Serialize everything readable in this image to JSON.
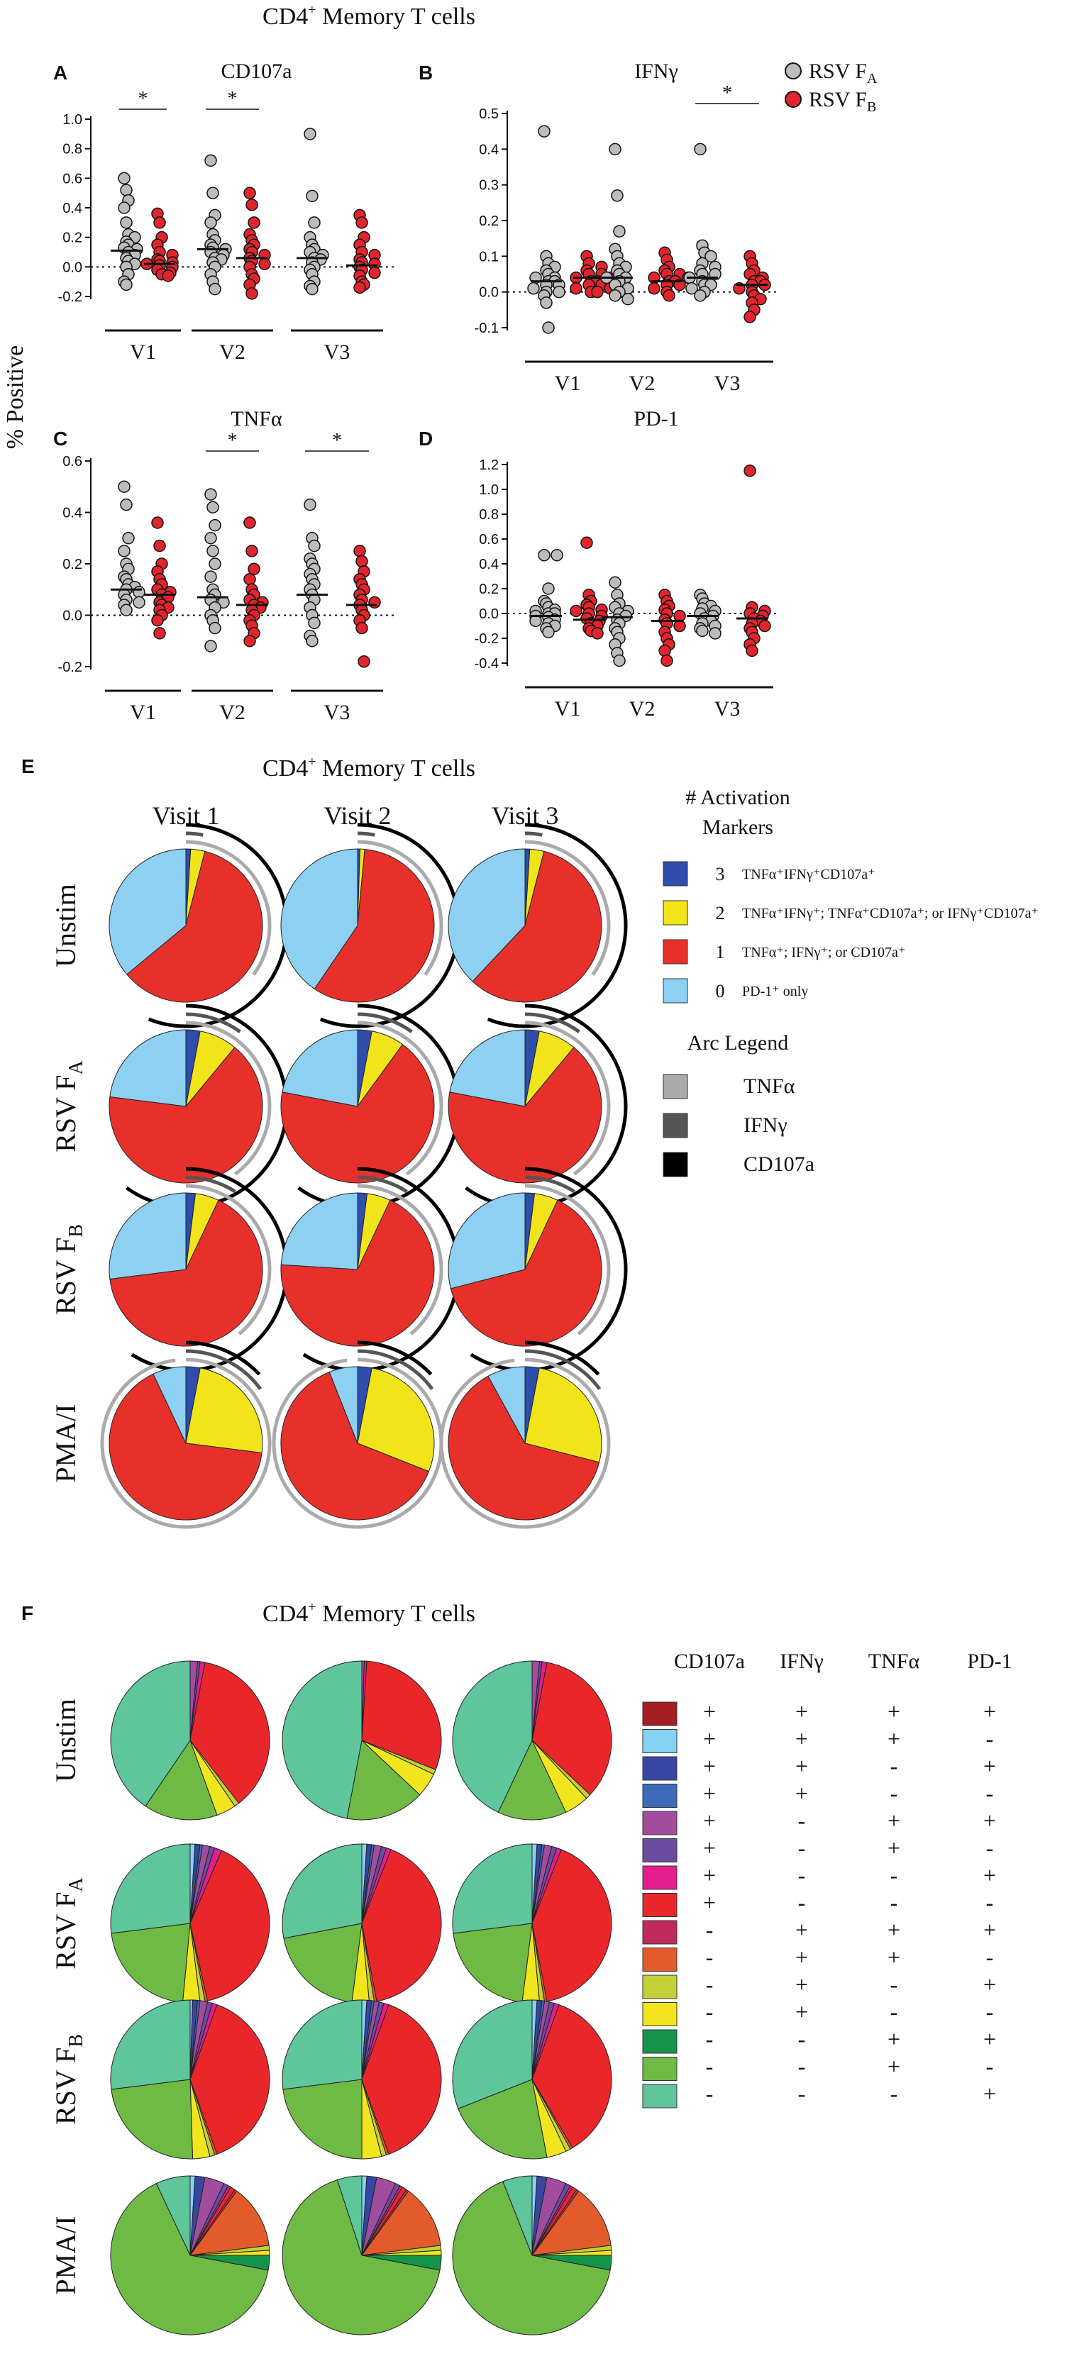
{
  "section_one": {
    "title": "CD4",
    "title_sup": "+",
    "title_rest": " Memory T cells",
    "ylabel": "% Positive",
    "legend": [
      {
        "pre": "RSV F",
        "sub": "A",
        "color": "#bcbcbc"
      },
      {
        "pre": "RSV F",
        "sub": "B",
        "color": "#e2242d"
      }
    ]
  },
  "chart_data": [
    {
      "type": "scatter",
      "panel": "A",
      "title": "CD107a",
      "ylim": [
        -0.2,
        1.0
      ],
      "yticks": [
        "-0.2",
        "0.0",
        "0.2",
        "0.4",
        "0.6",
        "0.8",
        "1.0"
      ],
      "groups": [
        "V1",
        "V2",
        "V3"
      ],
      "series": [
        {
          "name": "RSV FA",
          "color": "#bcbcbc"
        },
        {
          "name": "RSV FB",
          "color": "#e2242d"
        }
      ],
      "values": [
        [
          0.6,
          0.52,
          0.45,
          0.4,
          0.3,
          0.22,
          0.2,
          0.17,
          0.15,
          0.13,
          0.12,
          0.1,
          0.08,
          0.06,
          0.04,
          0.02,
          0.0,
          -0.05,
          -0.1,
          -0.12
        ],
        [
          0.36,
          0.3,
          0.2,
          0.15,
          0.1,
          0.08,
          0.05,
          0.04,
          0.03,
          0.02,
          0.01,
          0.0,
          -0.02,
          -0.04,
          -0.05,
          -0.06
        ],
        [
          0.72,
          0.5,
          0.35,
          0.3,
          0.22,
          0.18,
          0.15,
          0.13,
          0.12,
          0.1,
          0.08,
          0.06,
          0.05,
          0.03,
          0.0,
          -0.05,
          -0.1,
          -0.15
        ],
        [
          0.5,
          0.42,
          0.3,
          0.22,
          0.18,
          0.15,
          0.12,
          0.1,
          0.08,
          0.06,
          0.04,
          0.02,
          0.0,
          -0.05,
          -0.08,
          -0.12,
          -0.18
        ],
        [
          0.9,
          0.48,
          0.3,
          0.2,
          0.15,
          0.12,
          0.1,
          0.08,
          0.06,
          0.05,
          0.03,
          0.0,
          -0.02,
          -0.05,
          -0.1,
          -0.13,
          -0.15
        ],
        [
          0.35,
          0.3,
          0.2,
          0.15,
          0.1,
          0.08,
          0.05,
          0.03,
          0.02,
          0.0,
          -0.02,
          -0.04,
          -0.06,
          -0.1,
          -0.12,
          -0.14
        ]
      ],
      "medians": [
        0.11,
        0.02,
        0.12,
        0.06,
        0.06,
        0.01
      ],
      "significance": [
        {
          "pair": "V1",
          "label": "*"
        },
        {
          "pair": "V2",
          "label": "*"
        }
      ]
    },
    {
      "type": "scatter",
      "panel": "B",
      "title": "IFNγ",
      "ylim": [
        -0.1,
        0.5
      ],
      "yticks": [
        "-0.1",
        "0.0",
        "0.1",
        "0.2",
        "0.3",
        "0.4",
        "0.5"
      ],
      "groups": [
        "V1",
        "V2",
        "V3"
      ],
      "series": [
        {
          "name": "RSV FA",
          "color": "#bcbcbc"
        },
        {
          "name": "RSV FB",
          "color": "#e2242d"
        }
      ],
      "values": [
        [
          0.45,
          0.1,
          0.08,
          0.07,
          0.06,
          0.05,
          0.04,
          0.04,
          0.03,
          0.03,
          0.02,
          0.02,
          0.01,
          0.0,
          0.0,
          -0.01,
          -0.03,
          -0.1
        ],
        [
          0.1,
          0.08,
          0.07,
          0.06,
          0.05,
          0.05,
          0.04,
          0.04,
          0.03,
          0.03,
          0.02,
          0.02,
          0.01,
          0.01,
          0.0,
          0.0
        ],
        [
          0.4,
          0.27,
          0.17,
          0.12,
          0.1,
          0.08,
          0.07,
          0.06,
          0.05,
          0.04,
          0.04,
          0.03,
          0.02,
          0.01,
          0.0,
          -0.01,
          -0.02
        ],
        [
          0.11,
          0.09,
          0.07,
          0.06,
          0.05,
          0.05,
          0.04,
          0.04,
          0.03,
          0.03,
          0.02,
          0.02,
          0.01,
          0.0,
          -0.01
        ],
        [
          0.4,
          0.13,
          0.11,
          0.1,
          0.08,
          0.07,
          0.06,
          0.05,
          0.05,
          0.04,
          0.03,
          0.02,
          0.02,
          0.01,
          0.0,
          -0.01
        ],
        [
          0.1,
          0.08,
          0.06,
          0.05,
          0.04,
          0.03,
          0.03,
          0.02,
          0.02,
          0.01,
          0.0,
          -0.01,
          -0.02,
          -0.03,
          -0.05,
          -0.07
        ]
      ],
      "medians": [
        0.03,
        0.04,
        0.04,
        0.03,
        0.04,
        0.02
      ],
      "significance": [
        {
          "pair": "V3",
          "label": "*"
        }
      ]
    },
    {
      "type": "scatter",
      "panel": "C",
      "title": "TNFα",
      "ylim": [
        -0.2,
        0.6
      ],
      "yticks": [
        "-0.2",
        "0.0",
        "0.2",
        "0.4",
        "0.6"
      ],
      "groups": [
        "V1",
        "V2",
        "V3"
      ],
      "series": [
        {
          "name": "RSV FA",
          "color": "#bcbcbc"
        },
        {
          "name": "RSV FB",
          "color": "#e2242d"
        }
      ],
      "values": [
        [
          0.5,
          0.43,
          0.3,
          0.25,
          0.2,
          0.18,
          0.15,
          0.14,
          0.12,
          0.11,
          0.1,
          0.09,
          0.08,
          0.06,
          0.05,
          0.04,
          0.02
        ],
        [
          0.36,
          0.27,
          0.2,
          0.17,
          0.14,
          0.12,
          0.1,
          0.09,
          0.08,
          0.07,
          0.05,
          0.04,
          0.03,
          0.02,
          0.0,
          -0.02,
          -0.07
        ],
        [
          0.47,
          0.42,
          0.35,
          0.3,
          0.25,
          0.2,
          0.15,
          0.1,
          0.08,
          0.06,
          0.05,
          0.03,
          0.0,
          -0.02,
          -0.05,
          -0.12
        ],
        [
          0.36,
          0.25,
          0.18,
          0.14,
          0.1,
          0.08,
          0.06,
          0.05,
          0.04,
          0.03,
          0.02,
          0.0,
          -0.02,
          -0.04,
          -0.07,
          -0.1
        ],
        [
          0.43,
          0.3,
          0.27,
          0.22,
          0.2,
          0.18,
          0.16,
          0.14,
          0.12,
          0.1,
          0.08,
          0.06,
          0.03,
          0.0,
          -0.03,
          -0.08,
          -0.1
        ],
        [
          0.25,
          0.21,
          0.17,
          0.14,
          0.12,
          0.1,
          0.08,
          0.06,
          0.05,
          0.04,
          0.02,
          0.0,
          -0.02,
          -0.05,
          -0.18
        ]
      ],
      "medians": [
        0.1,
        0.08,
        0.07,
        0.04,
        0.08,
        0.04
      ],
      "significance": [
        {
          "pair": "V2",
          "label": "*"
        },
        {
          "pair": "V3",
          "label": "*"
        }
      ]
    },
    {
      "type": "scatter",
      "panel": "D",
      "title": "PD-1",
      "ylim": [
        -0.4,
        1.2
      ],
      "yticks": [
        "-0.4",
        "-0.2",
        "0.0",
        "0.2",
        "0.4",
        "0.6",
        "0.8",
        "1.0",
        "1.2"
      ],
      "groups": [
        "V1",
        "V2",
        "V3"
      ],
      "series": [
        {
          "name": "RSV FA",
          "color": "#bcbcbc"
        },
        {
          "name": "RSV FB",
          "color": "#e2242d"
        }
      ],
      "values": [
        [
          0.47,
          0.47,
          0.2,
          0.1,
          0.08,
          0.05,
          0.03,
          0.02,
          0.0,
          0.0,
          -0.02,
          -0.03,
          -0.05,
          -0.06,
          -0.08,
          -0.1,
          -0.12,
          -0.15
        ],
        [
          0.57,
          0.15,
          0.1,
          0.07,
          0.05,
          0.03,
          0.02,
          0.0,
          -0.02,
          -0.04,
          -0.06,
          -0.08,
          -0.1,
          -0.12,
          -0.14,
          -0.16
        ],
        [
          0.25,
          0.15,
          0.08,
          0.05,
          0.02,
          0.0,
          -0.02,
          -0.05,
          -0.08,
          -0.12,
          -0.15,
          -0.2,
          -0.25,
          -0.32,
          -0.38
        ],
        [
          0.15,
          0.1,
          0.06,
          0.03,
          0.0,
          -0.02,
          -0.05,
          -0.08,
          -0.1,
          -0.15,
          -0.2,
          -0.25,
          -0.3,
          -0.38
        ],
        [
          0.15,
          0.12,
          0.08,
          0.06,
          0.04,
          0.02,
          0.0,
          -0.02,
          -0.04,
          -0.06,
          -0.08,
          -0.1,
          -0.12,
          -0.14,
          -0.16
        ],
        [
          1.15,
          0.05,
          0.02,
          0.0,
          -0.02,
          -0.04,
          -0.06,
          -0.08,
          -0.1,
          -0.12,
          -0.15,
          -0.2,
          -0.25,
          -0.3
        ]
      ],
      "medians": [
        -0.02,
        -0.05,
        -0.03,
        -0.06,
        -0.02,
        -0.04
      ],
      "significance": []
    },
    {
      "type": "pie",
      "panel": "E",
      "title": "CD4",
      "title_sup": "+",
      "title_rest": " Memory T cells",
      "columns": [
        "Visit 1",
        "Visit 2",
        "Visit 3"
      ],
      "rows": [
        {
          "pre": "Unstim",
          "sub": ""
        },
        {
          "pre": "RSV F",
          "sub": "A"
        },
        {
          "pre": "RSV F",
          "sub": "B"
        },
        {
          "pre": "PMA/I",
          "sub": ""
        }
      ],
      "categories": [
        "3",
        "2",
        "1",
        "0"
      ],
      "category_colors": [
        "#2f4dab",
        "#f2e41b",
        "#e8302a",
        "#8dd0f2"
      ],
      "values": [
        [
          [
            1,
            3,
            60,
            36
          ],
          [
            0.5,
            1,
            58,
            40.5
          ],
          [
            1,
            3,
            58,
            38
          ]
        ],
        [
          [
            3,
            8,
            66,
            23
          ],
          [
            3,
            7,
            68,
            22
          ],
          [
            3,
            8,
            67,
            22
          ]
        ],
        [
          [
            2,
            5,
            66,
            27
          ],
          [
            2,
            5,
            69,
            24
          ],
          [
            2,
            5,
            64,
            29
          ]
        ],
        [
          [
            3,
            24,
            66,
            7
          ],
          [
            3,
            28,
            63,
            6
          ],
          [
            3,
            26,
            63,
            8
          ]
        ]
      ],
      "arcs": [
        [
          [
            0,
            35,
            "#aaaaaa"
          ],
          [
            0,
            3,
            "#555555"
          ],
          [
            0,
            56,
            "#000000"
          ]
        ],
        [
          [
            0,
            40,
            "#aaaaaa"
          ],
          [
            0,
            10,
            "#555555"
          ],
          [
            0,
            60,
            "#000000"
          ]
        ],
        [
          [
            0,
            39,
            "#aaaaaa"
          ],
          [
            0,
            9,
            "#555555"
          ],
          [
            0,
            59,
            "#000000"
          ]
        ],
        [
          [
            0,
            98,
            "#aaaaaa"
          ],
          [
            0,
            15,
            "#555555"
          ],
          [
            0,
            13,
            "#000000"
          ]
        ]
      ],
      "legend_title": "# Activation Markers",
      "legend_items": [
        {
          "num": "3",
          "color": "#2f4dab",
          "label": "TNFα⁺IFNγ⁺CD107a⁺"
        },
        {
          "num": "2",
          "color": "#f2e41b",
          "label": "TNFα⁺IFNγ⁺; TNFα⁺CD107a⁺; or IFNγ⁺CD107a⁺"
        },
        {
          "num": "1",
          "color": "#e8302a",
          "label": "TNFα⁺; IFNγ⁺; or CD107a⁺"
        },
        {
          "num": "0",
          "color": "#8dd0f2",
          "label": "PD-1⁺ only"
        }
      ],
      "arc_legend_title": "Arc Legend",
      "arc_legend": [
        {
          "label": "TNFα",
          "color": "#aaaaaa"
        },
        {
          "label": "IFNγ",
          "color": "#555555"
        },
        {
          "label": "CD107a",
          "color": "#000000"
        }
      ]
    },
    {
      "type": "pie",
      "panel": "F",
      "title": "CD4",
      "title_sup": "+",
      "title_rest": " Memory T cells",
      "rows": [
        {
          "pre": "Unstim",
          "sub": ""
        },
        {
          "pre": "RSV F",
          "sub": "A"
        },
        {
          "pre": "RSV F",
          "sub": "B"
        },
        {
          "pre": "PMA/I",
          "sub": ""
        }
      ],
      "category_colors": [
        "#a41e23",
        "#84d3f5",
        "#3846a3",
        "#3c6bb8",
        "#a24c9e",
        "#6b4ca2",
        "#e41d8d",
        "#e9272b",
        "#c02a5e",
        "#e35b2a",
        "#c3d137",
        "#f1e61d",
        "#14934a",
        "#6fba45",
        "#5fc59a"
      ],
      "values": [
        [
          [
            0,
            0,
            0,
            0,
            1.5,
            0.5,
            1,
            36.5,
            0,
            0,
            1,
            4,
            0,
            15,
            40.5
          ],
          [
            0,
            0,
            0,
            0,
            0.5,
            0,
            0.5,
            30,
            0,
            0,
            1,
            5,
            0,
            16,
            47
          ],
          [
            0,
            0,
            0,
            0,
            1.5,
            0.5,
            1,
            34,
            0,
            0,
            1,
            5,
            0,
            14,
            43
          ]
        ],
        [
          [
            0,
            1,
            1,
            0.5,
            1.5,
            1,
            1.5,
            40,
            0,
            0.5,
            1,
            3.5,
            0,
            21.5,
            27
          ],
          [
            0,
            1,
            1,
            0.5,
            1.5,
            1,
            1,
            41,
            0,
            0.5,
            1,
            3.5,
            0,
            20,
            28
          ],
          [
            0,
            1,
            1,
            0.5,
            1.5,
            1,
            1,
            41,
            0,
            0.5,
            1,
            3.5,
            0,
            21,
            27
          ]
        ],
        [
          [
            0,
            0.5,
            1,
            0.5,
            1.5,
            1,
            1,
            39,
            0,
            0.5,
            1,
            3.5,
            0,
            23.5,
            27
          ],
          [
            0,
            1,
            1,
            0.5,
            1,
            1,
            1,
            39,
            0,
            0.5,
            1,
            4,
            0,
            23,
            27
          ],
          [
            0,
            1,
            1,
            0.5,
            1,
            1,
            1,
            36,
            0,
            0.5,
            1,
            4,
            0,
            22,
            31
          ]
        ],
        [
          [
            0,
            1,
            2,
            0,
            4,
            1,
            0.5,
            1,
            0.5,
            13,
            1,
            1,
            3,
            65,
            7
          ],
          [
            0,
            1,
            2,
            0,
            4,
            1,
            0.5,
            1,
            0.5,
            13,
            1,
            1,
            3,
            67,
            5
          ],
          [
            0,
            1,
            2,
            0,
            4,
            1,
            0.5,
            1,
            0.5,
            13,
            1,
            1,
            3,
            66,
            6
          ]
        ]
      ],
      "header": [
        "CD107a",
        "IFNγ",
        "TNFα",
        "PD-1"
      ],
      "table": [
        [
          "+",
          "+",
          "+",
          "+"
        ],
        [
          "+",
          "+",
          "+",
          "-"
        ],
        [
          "+",
          "+",
          "-",
          "+"
        ],
        [
          "+",
          "+",
          "-",
          "-"
        ],
        [
          "+",
          "-",
          "+",
          "+"
        ],
        [
          "+",
          "-",
          "+",
          "-"
        ],
        [
          "+",
          "-",
          "-",
          "+"
        ],
        [
          "+",
          "-",
          "-",
          "-"
        ],
        [
          "-",
          "+",
          "+",
          "+"
        ],
        [
          "-",
          "+",
          "+",
          "-"
        ],
        [
          "-",
          "+",
          "-",
          "+"
        ],
        [
          "-",
          "+",
          "-",
          "-"
        ],
        [
          "-",
          "-",
          "+",
          "+"
        ],
        [
          "-",
          "-",
          "+",
          "-"
        ],
        [
          "-",
          "-",
          "-",
          "+"
        ]
      ]
    }
  ]
}
